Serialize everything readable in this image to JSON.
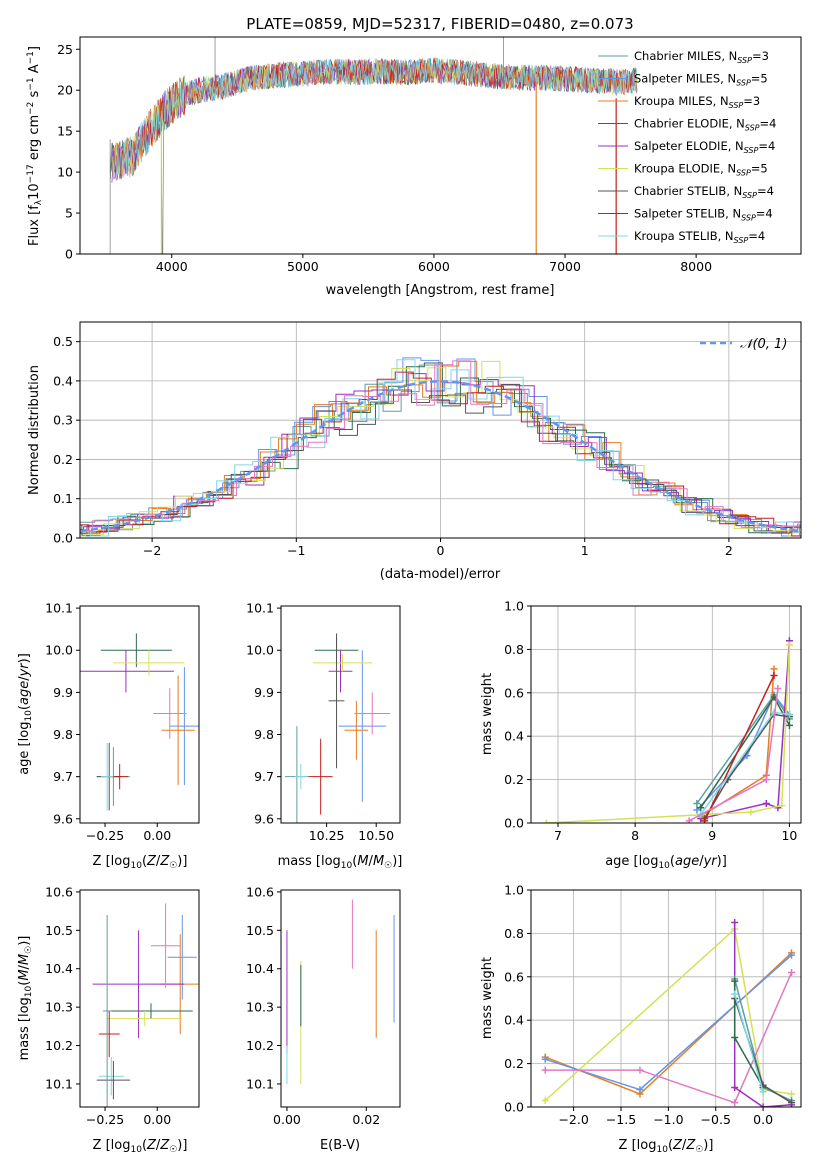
{
  "legend_labels": [
    {
      "pre": "Chabrier MILES, N",
      "sub": "SSP",
      "post": "=3",
      "color": "#5f9ea0"
    },
    {
      "pre": "Salpeter MILES, N",
      "sub": "SSP",
      "post": "=5",
      "color": "#6495ed"
    },
    {
      "pre": "Kroupa MILES, N",
      "sub": "SSP",
      "post": "=3",
      "color": "#e87d1e"
    },
    {
      "pre": "Chabrier ELODIE, N",
      "sub": "SSP",
      "post": "=4",
      "color": "#2e6b4f"
    },
    {
      "pre": "Salpeter ELODIE, N",
      "sub": "SSP",
      "post": "=4",
      "color": "#9b30c0"
    },
    {
      "pre": "Kroupa ELODIE, N",
      "sub": "SSP",
      "post": "=5",
      "color": "#d4e157"
    },
    {
      "pre": "Chabrier STELIB, N",
      "sub": "SSP",
      "post": "=4",
      "color": "#555555"
    },
    {
      "pre": "Salpeter STELIB, N",
      "sub": "SSP",
      "post": "=4",
      "color": "#c41e1e"
    },
    {
      "pre": "Kroupa STELIB, N",
      "sub": "SSP",
      "post": "=4",
      "color": "#7fd8e6"
    }
  ],
  "chart_data": [
    {
      "type": "line",
      "title": "PLATE=0859, MJD=52317, FIBERID=0480, z=0.073",
      "xlabel": "wavelength [Angstrom, rest frame]",
      "ylabel": "Flux [fλ10⁻¹⁷ erg cm⁻² s⁻¹ A⁻¹]",
      "xlim": [
        3300,
        8800
      ],
      "ylim": [
        0,
        26.5
      ],
      "xticks": [
        4000,
        5000,
        6000,
        7000,
        8000
      ],
      "yticks": [
        0,
        5,
        10,
        15,
        20,
        25
      ],
      "spectrum_shape": {
        "x": [
          3530,
          3700,
          3850,
          3950,
          4050,
          4200,
          4400,
          4600,
          4800,
          5000,
          5200,
          5400,
          5600,
          5800,
          6000,
          6200,
          6400,
          6600,
          6800,
          7000,
          7200,
          7400,
          7550
        ],
        "y": [
          11,
          12,
          15.5,
          17.5,
          19,
          20,
          20.5,
          21.5,
          21.8,
          22,
          22.3,
          22.2,
          22.3,
          22.2,
          22.4,
          22.2,
          21.8,
          21.6,
          21.5,
          21.4,
          21.2,
          21,
          21.2
        ]
      },
      "grid": false,
      "legend_position": "top-right"
    },
    {
      "type": "step",
      "xlabel": "(data-model)/error",
      "ylabel": "Normed distribution",
      "xlim": [
        -2.5,
        2.5
      ],
      "ylim": [
        0,
        0.55
      ],
      "xticks": [
        -2,
        -1,
        0,
        1,
        2
      ],
      "yticks": [
        0,
        0.1,
        0.2,
        0.3,
        0.4,
        0.5
      ],
      "bin_width": 0.125,
      "reference_curve": {
        "name": "N(0, 1)",
        "label_plain": "𝒩(0, 1)",
        "color": "#6495ed",
        "dash": true
      },
      "grid": true,
      "legend_position": "top-right"
    },
    {
      "type": "errorbar",
      "xlabel": "Z [log10(Z/Z☉)]",
      "ylabel": "age  [log10(age/yr)]",
      "xlim": [
        -0.37,
        0.2
      ],
      "ylim": [
        9.59,
        10.105
      ],
      "xticks": [
        -0.25,
        0.0
      ],
      "yticks": [
        9.6,
        9.7,
        9.8,
        9.9,
        10.0,
        10.1
      ],
      "points": [
        {
          "x": -0.21,
          "y": 9.7,
          "xerr": 0.08,
          "yerr": 0.07,
          "color": "#5f9ea0"
        },
        {
          "x": 0.13,
          "y": 9.82,
          "xerr": 0.07,
          "yerr": 0.14,
          "color": "#6495ed"
        },
        {
          "x": 0.1,
          "y": 9.81,
          "xerr": 0.08,
          "yerr": 0.13,
          "color": "#e87d1e"
        },
        {
          "x": -0.1,
          "y": 10.0,
          "xerr": 0.17,
          "yerr": 0.04,
          "color": "#2e6b4f"
        },
        {
          "x": -0.15,
          "y": 9.95,
          "xerr": 0.23,
          "yerr": 0.05,
          "color": "#9b30c0"
        },
        {
          "x": -0.04,
          "y": 9.97,
          "xerr": 0.17,
          "yerr": 0.03,
          "color": "#d4e157"
        },
        {
          "x": -0.23,
          "y": 9.7,
          "xerr": 0.06,
          "yerr": 0.08,
          "color": "#555555"
        },
        {
          "x": -0.18,
          "y": 9.7,
          "xerr": 0.04,
          "yerr": 0.03,
          "color": "#c41e1e"
        },
        {
          "x": -0.24,
          "y": 9.7,
          "xerr": 0.03,
          "yerr": 0.08,
          "color": "#7fd8e6"
        },
        {
          "x": 0.06,
          "y": 9.85,
          "xerr": 0.08,
          "yerr": 0.06,
          "color": "#e377c2"
        }
      ]
    },
    {
      "type": "errorbar",
      "xlabel": "mass [log10(M/M☉)]",
      "ylabel": "",
      "xlim": [
        10.02,
        10.62
      ],
      "ylim": [
        9.59,
        10.105
      ],
      "xticks": [
        10.25,
        10.5
      ],
      "yticks": [
        9.6,
        9.7,
        9.8,
        9.9,
        10.0,
        10.1
      ],
      "points": [
        {
          "x": 10.1,
          "y": 9.7,
          "xerr": 0.06,
          "yerr": 0.12,
          "color": "#5f9ea0"
        },
        {
          "x": 10.43,
          "y": 9.82,
          "xerr": 0.12,
          "yerr": 0.18,
          "color": "#6495ed"
        },
        {
          "x": 10.4,
          "y": 9.81,
          "xerr": 0.06,
          "yerr": 0.07,
          "color": "#e87d1e"
        },
        {
          "x": 10.3,
          "y": 10.0,
          "xerr": 0.11,
          "yerr": 0.03,
          "color": "#2e6b4f"
        },
        {
          "x": 10.32,
          "y": 9.95,
          "xerr": 0.06,
          "yerr": 0.05,
          "color": "#9b30c0"
        },
        {
          "x": 10.33,
          "y": 9.97,
          "xerr": 0.15,
          "yerr": 0.02,
          "color": "#d4e157"
        },
        {
          "x": 10.3,
          "y": 9.88,
          "xerr": 0.04,
          "yerr": 0.16,
          "color": "#555555"
        },
        {
          "x": 10.22,
          "y": 9.7,
          "xerr": 0.06,
          "yerr": 0.09,
          "color": "#c41e1e"
        },
        {
          "x": 10.12,
          "y": 9.7,
          "xerr": 0.03,
          "yerr": 0.03,
          "color": "#7fd8e6"
        },
        {
          "x": 10.48,
          "y": 9.85,
          "xerr": 0.09,
          "yerr": 0.05,
          "color": "#e377c2"
        }
      ]
    },
    {
      "type": "line",
      "xlabel": "age  [log10(age/yr)]",
      "ylabel": "mass weight",
      "xlim": [
        6.65,
        10.15
      ],
      "ylim": [
        0,
        1
      ],
      "xticks": [
        7,
        8,
        9,
        10
      ],
      "yticks": [
        0.0,
        0.2,
        0.4,
        0.6,
        0.8,
        1.0
      ],
      "grid": true,
      "series": [
        {
          "color": "#5f9ea0",
          "x": [
            8.8,
            9.8,
            10.0
          ],
          "y": [
            0.09,
            0.59,
            0.48
          ]
        },
        {
          "color": "#6495ed",
          "x": [
            8.8,
            9.45,
            9.8,
            10.0
          ],
          "y": [
            0.06,
            0.31,
            0.59,
            0.5
          ]
        },
        {
          "color": "#e87d1e",
          "x": [
            8.85,
            9.7,
            9.8
          ],
          "y": [
            0.03,
            0.22,
            0.71
          ]
        },
        {
          "color": "#2e6b4f",
          "x": [
            8.85,
            9.8,
            10.0
          ],
          "y": [
            0.07,
            0.58,
            0.45
          ]
        },
        {
          "color": "#9b30c0",
          "x": [
            8.85,
            9.7,
            9.85,
            10.0
          ],
          "y": [
            0.02,
            0.09,
            0.07,
            0.84
          ]
        },
        {
          "color": "#d4e157",
          "x": [
            6.85,
            9.5,
            9.9,
            10.0
          ],
          "y": [
            0.0,
            0.05,
            0.08,
            0.82
          ]
        },
        {
          "color": "#555555",
          "x": [
            8.9,
            9.2,
            9.8,
            10.0
          ],
          "y": [
            0.02,
            0.2,
            0.5,
            0.49
          ]
        },
        {
          "color": "#c41e1e",
          "x": [
            8.9,
            9.8
          ],
          "y": [
            0.01,
            0.68
          ]
        },
        {
          "color": "#7fd8e6",
          "x": [
            8.85,
            9.8,
            10.0
          ],
          "y": [
            0.04,
            0.51,
            0.5
          ]
        },
        {
          "color": "#e377c2",
          "x": [
            8.7,
            9.7,
            9.85
          ],
          "y": [
            0.01,
            0.2,
            0.62
          ]
        }
      ]
    },
    {
      "type": "errorbar",
      "xlabel": "Z [log10(Z/Z☉)]",
      "ylabel": "mass [log10(M/M☉)]",
      "xlim": [
        -0.37,
        0.2
      ],
      "ylim": [
        10.04,
        10.605
      ],
      "xticks": [
        -0.25,
        0.0
      ],
      "yticks": [
        10.1,
        10.2,
        10.3,
        10.4,
        10.5,
        10.6
      ],
      "points": [
        {
          "x": -0.22,
          "y": 10.12,
          "xerr": 0.06,
          "yerr": 0.05,
          "color": "#7fd8e6"
        },
        {
          "x": -0.21,
          "y": 10.11,
          "xerr": 0.08,
          "yerr": 0.05,
          "color": "#555555"
        },
        {
          "x": 0.12,
          "y": 10.43,
          "xerr": 0.07,
          "yerr": 0.11,
          "color": "#6495ed"
        },
        {
          "x": 0.11,
          "y": 10.36,
          "xerr": 0.1,
          "yerr": 0.13,
          "color": "#e87d1e"
        },
        {
          "x": -0.03,
          "y": 10.29,
          "xerr": 0.2,
          "yerr": 0.02,
          "color": "#2e6b4f"
        },
        {
          "x": -0.09,
          "y": 10.36,
          "xerr": 0.22,
          "yerr": 0.14,
          "color": "#9b30c0"
        },
        {
          "x": -0.06,
          "y": 10.27,
          "xerr": 0.18,
          "yerr": 0.02,
          "color": "#d4e157"
        },
        {
          "x": -0.23,
          "y": 10.23,
          "xerr": 0.05,
          "yerr": 0.06,
          "color": "#c41e1e"
        },
        {
          "x": -0.24,
          "y": 10.29,
          "xerr": 0.02,
          "yerr": 0.25,
          "color": "#5f9ea0"
        },
        {
          "x": 0.04,
          "y": 10.46,
          "xerr": 0.07,
          "yerr": 0.11,
          "color": "#e377c2"
        }
      ]
    },
    {
      "type": "errorbar",
      "xlabel": "E(B-V)",
      "ylabel": "",
      "xlim": [
        -0.0015,
        0.0285
      ],
      "ylim": [
        10.04,
        10.605
      ],
      "xticks": [
        0.0,
        0.02
      ],
      "yticks": [
        10.1,
        10.2,
        10.3,
        10.4,
        10.5,
        10.6
      ],
      "points": [
        {
          "x": 0.0,
          "y": 10.34,
          "xerr": 0,
          "yerr": 0.16,
          "color": "#9b30c0"
        },
        {
          "x": 0.0,
          "y": 10.15,
          "xerr": 0,
          "yerr": 0.05,
          "color": "#7fd8e6"
        },
        {
          "x": 0.0035,
          "y": 10.26,
          "xerr": 0,
          "yerr": 0.16,
          "color": "#d4e157"
        },
        {
          "x": 0.0035,
          "y": 10.33,
          "xerr": 0,
          "yerr": 0.08,
          "color": "#2e6b4f"
        },
        {
          "x": 0.0165,
          "y": 10.49,
          "xerr": 0,
          "yerr": 0.09,
          "color": "#e377c2"
        },
        {
          "x": 0.0225,
          "y": 10.36,
          "xerr": 0,
          "yerr": 0.14,
          "color": "#e87d1e"
        },
        {
          "x": 0.027,
          "y": 10.4,
          "xerr": 0,
          "yerr": 0.14,
          "color": "#6495ed"
        }
      ]
    },
    {
      "type": "line",
      "xlabel": "Z [log10(Z/Z☉)]",
      "ylabel": "mass weight",
      "xlim": [
        -2.45,
        0.4
      ],
      "ylim": [
        0,
        1
      ],
      "xticks": [
        -2.0,
        -1.5,
        -1.0,
        -0.5,
        0.0
      ],
      "yticks": [
        0.0,
        0.2,
        0.4,
        0.6,
        0.8,
        1.0
      ],
      "grid": true,
      "series": [
        {
          "color": "#e87d1e",
          "x": [
            -2.3,
            -1.3,
            0.3
          ],
          "y": [
            0.23,
            0.06,
            0.71
          ]
        },
        {
          "color": "#6495ed",
          "x": [
            -2.3,
            -1.3,
            0.3
          ],
          "y": [
            0.22,
            0.08,
            0.7
          ]
        },
        {
          "color": "#d4e157",
          "x": [
            -2.3,
            -0.3,
            0.0,
            0.3
          ],
          "y": [
            0.03,
            0.82,
            0.08,
            0.06
          ]
        },
        {
          "color": "#e377c2",
          "x": [
            -2.3,
            -1.3,
            -0.3,
            0.3
          ],
          "y": [
            0.17,
            0.17,
            0.02,
            0.62
          ]
        },
        {
          "color": "#9b30c0",
          "x": [
            -0.3,
            -0.3,
            0.0,
            0.3
          ],
          "y": [
            0.85,
            0.09,
            0.0,
            0.01
          ]
        },
        {
          "color": "#5f9ea0",
          "x": [
            -0.3,
            0.0,
            0.3
          ],
          "y": [
            0.59,
            0.09,
            0.03
          ]
        },
        {
          "color": "#2e6b4f",
          "x": [
            -0.3,
            -0.3,
            0.0
          ],
          "y": [
            0.58,
            0.32,
            0.09
          ]
        },
        {
          "color": "#555555",
          "x": [
            -0.3,
            0.0,
            0.3
          ],
          "y": [
            0.5,
            0.1,
            0.02
          ]
        },
        {
          "color": "#7fd8e6",
          "x": [
            -0.3,
            0.0
          ],
          "y": [
            0.52,
            0.07
          ]
        }
      ]
    }
  ]
}
